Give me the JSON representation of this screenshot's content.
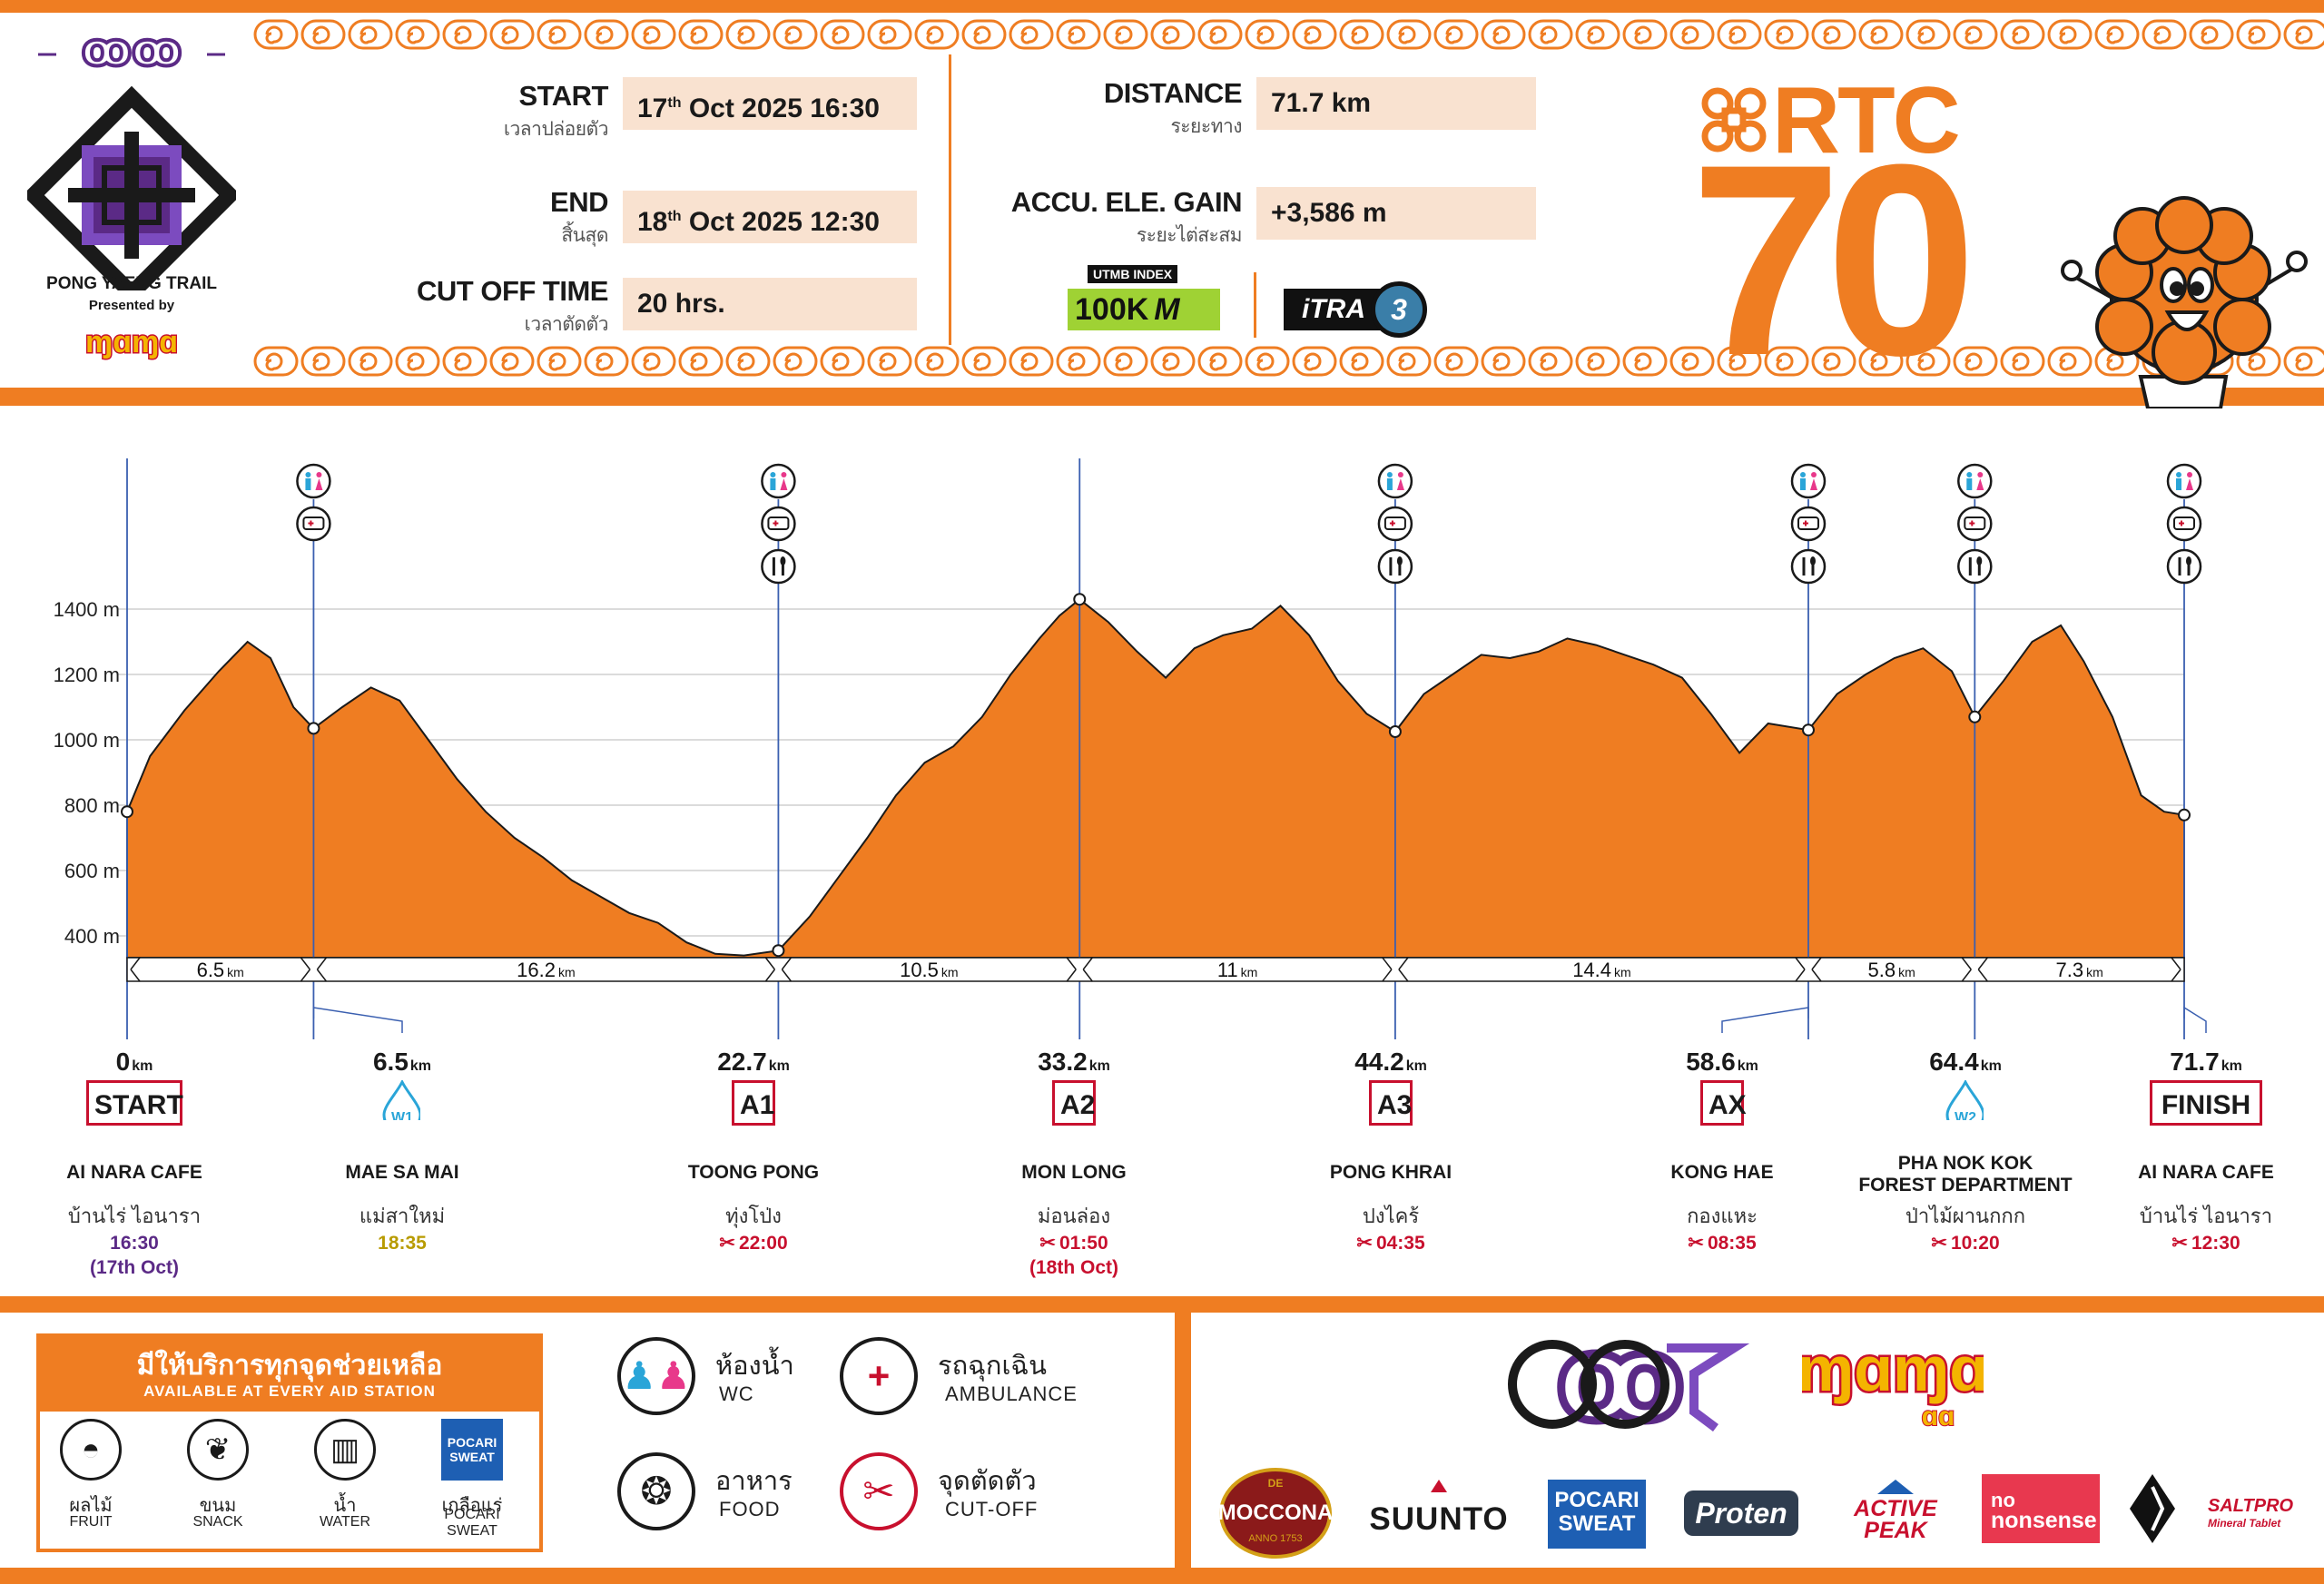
{
  "brand": {
    "trail_name": "PONG YAENG TRAIL",
    "presented_by": "Presented by",
    "race_code": "RTC",
    "race_distance": "70"
  },
  "fields": {
    "start_label": "START",
    "start_sub": "เวลาปล่อยตัว",
    "start_day": "17",
    "start_sup": "th",
    "start_rest": "Oct  2025   16:30",
    "end_label": "END",
    "end_sub": "สิ้นสุด",
    "end_day": "18",
    "end_sup": "th",
    "end_rest": "Oct  2025   12:30",
    "cutoff_label": "CUT OFF TIME",
    "cutoff_sub": "เวลาตัดตัว",
    "cutoff_value": "20 hrs.",
    "distance_label": "DISTANCE",
    "distance_sub": "ระยะทาง",
    "distance_value": "71.7 km",
    "gain_label": "ACCU. ELE. GAIN",
    "gain_sub": "ระยะไต่สะสม",
    "gain_value": "+3,586 m",
    "utmb_tag": "UTMB INDEX",
    "utmb_value": "100K",
    "utmb_mark": "M",
    "itra_text": "iTRA",
    "itra_value": "3"
  },
  "chart_data": {
    "type": "area",
    "xlabel": "",
    "ylabel": "",
    "y_unit": "m",
    "ylim": [
      300,
      1450
    ],
    "xlim": [
      0,
      71.7
    ],
    "y_ticks": [
      400,
      600,
      800,
      1000,
      1200,
      1400
    ],
    "y_tick_labels": [
      "400 m",
      "600 m",
      "800 m",
      "1000 m",
      "1200 m",
      "1400 m"
    ],
    "fill_color": "#ef7d22",
    "grid": true,
    "profile": [
      [
        0,
        780
      ],
      [
        0.8,
        950
      ],
      [
        2.0,
        1090
      ],
      [
        3.2,
        1210
      ],
      [
        4.2,
        1300
      ],
      [
        5.0,
        1250
      ],
      [
        5.8,
        1100
      ],
      [
        6.5,
        1035
      ],
      [
        7.5,
        1100
      ],
      [
        8.5,
        1160
      ],
      [
        9.5,
        1120
      ],
      [
        10.5,
        1000
      ],
      [
        11.5,
        880
      ],
      [
        12.5,
        780
      ],
      [
        13.5,
        700
      ],
      [
        14.5,
        640
      ],
      [
        15.5,
        570
      ],
      [
        16.5,
        520
      ],
      [
        17.5,
        470
      ],
      [
        18.5,
        440
      ],
      [
        19.5,
        380
      ],
      [
        20.5,
        345
      ],
      [
        21.5,
        340
      ],
      [
        22.7,
        355
      ],
      [
        23.8,
        460
      ],
      [
        24.8,
        580
      ],
      [
        25.8,
        700
      ],
      [
        26.8,
        830
      ],
      [
        27.8,
        930
      ],
      [
        28.8,
        980
      ],
      [
        29.8,
        1070
      ],
      [
        30.8,
        1200
      ],
      [
        31.8,
        1310
      ],
      [
        32.5,
        1380
      ],
      [
        33.2,
        1430
      ],
      [
        34.2,
        1360
      ],
      [
        35.2,
        1270
      ],
      [
        36.2,
        1190
      ],
      [
        37.2,
        1280
      ],
      [
        38.2,
        1320
      ],
      [
        39.2,
        1340
      ],
      [
        40.2,
        1410
      ],
      [
        41.2,
        1320
      ],
      [
        42.2,
        1180
      ],
      [
        43.2,
        1080
      ],
      [
        44.2,
        1025
      ],
      [
        45.2,
        1140
      ],
      [
        46.2,
        1200
      ],
      [
        47.2,
        1260
      ],
      [
        48.2,
        1250
      ],
      [
        49.2,
        1270
      ],
      [
        50.2,
        1310
      ],
      [
        51.2,
        1290
      ],
      [
        52.2,
        1260
      ],
      [
        53.2,
        1230
      ],
      [
        54.2,
        1190
      ],
      [
        55.2,
        1080
      ],
      [
        56.2,
        960
      ],
      [
        57.2,
        1050
      ],
      [
        58.6,
        1030
      ],
      [
        59.6,
        1140
      ],
      [
        60.6,
        1200
      ],
      [
        61.6,
        1250
      ],
      [
        62.6,
        1280
      ],
      [
        63.6,
        1210
      ],
      [
        64.4,
        1070
      ],
      [
        65.4,
        1180
      ],
      [
        66.4,
        1300
      ],
      [
        67.4,
        1350
      ],
      [
        68.2,
        1240
      ],
      [
        69.2,
        1070
      ],
      [
        70.2,
        830
      ],
      [
        71.0,
        780
      ],
      [
        71.7,
        770
      ]
    ],
    "stations": [
      {
        "km": 0,
        "km_label": "0",
        "code": "START",
        "type": "box",
        "name": "AI NARA CAFE",
        "name2": "",
        "thai": "บ้านไร่  ไอนารา",
        "time": "16:30",
        "time2": "(17th Oct)",
        "time_style": "start",
        "services": []
      },
      {
        "km": 6.5,
        "km_label": "6.5",
        "code": "W1",
        "type": "water",
        "name": "MAE SA MAI",
        "name2": "",
        "thai": "แม่สาใหม่",
        "time": "18:35",
        "time2": "",
        "time_style": "water",
        "services": [
          "wc",
          "ambulance"
        ]
      },
      {
        "km": 22.7,
        "km_label": "22.7",
        "code": "A1",
        "type": "box",
        "name": "TOONG PONG",
        "name2": "",
        "thai": "ทุ่งโป่ง",
        "time": "22:00",
        "time2": "",
        "time_style": "cutoff",
        "services": [
          "wc",
          "ambulance",
          "food"
        ]
      },
      {
        "km": 33.2,
        "km_label": "33.2",
        "code": "A2",
        "type": "box",
        "name": "MON LONG",
        "name2": "",
        "thai": "ม่อนล่อง",
        "time": "01:50",
        "time2": "(18th Oct)",
        "time_style": "cutoff",
        "services": []
      },
      {
        "km": 44.2,
        "km_label": "44.2",
        "code": "A3",
        "type": "box",
        "name": "PONG KHRAI",
        "name2": "",
        "thai": "ปงไคร้",
        "time": "04:35",
        "time2": "",
        "time_style": "cutoff",
        "services": [
          "wc",
          "ambulance",
          "food"
        ]
      },
      {
        "km": 58.6,
        "km_label": "58.6",
        "code": "AX",
        "type": "box",
        "name": "KONG HAE",
        "name2": "",
        "thai": "กองแหะ",
        "time": "08:35",
        "time2": "",
        "time_style": "cutoff",
        "services": [
          "wc",
          "ambulance",
          "food"
        ]
      },
      {
        "km": 64.4,
        "km_label": "64.4",
        "code": "W2",
        "type": "water",
        "name": "PHA NOK KOK",
        "name2": "FOREST DEPARTMENT",
        "thai": "ป่าไม้ผานกกก",
        "time": "10:20",
        "time2": "",
        "time_style": "cutoff",
        "services": [
          "wc",
          "ambulance",
          "food"
        ]
      },
      {
        "km": 71.7,
        "km_label": "71.7",
        "code": "FINISH",
        "type": "box",
        "name": "AI NARA CAFE",
        "name2": "",
        "thai": "บ้านไร่  ไอนารา",
        "time": "12:30",
        "time2": "",
        "time_style": "cutoff",
        "services": [
          "wc",
          "ambulance",
          "food"
        ]
      }
    ],
    "segments": [
      {
        "value": "6.5",
        "unit": "km"
      },
      {
        "value": "16.2",
        "unit": "km"
      },
      {
        "value": "10.5",
        "unit": "km"
      },
      {
        "value": "11",
        "unit": "km"
      },
      {
        "value": "14.4",
        "unit": "km"
      },
      {
        "value": "5.8",
        "unit": "km"
      },
      {
        "value": "7.3",
        "unit": "km"
      }
    ]
  },
  "aid": {
    "title_th": "มีให้บริการทุกจุดช่วยเหลือ",
    "title_en": "AVAILABLE AT EVERY AID STATION",
    "items": [
      {
        "th": "ผลไม้",
        "en": "FRUIT",
        "icon": "watermelon-icon"
      },
      {
        "th": "ขนม",
        "en": "SNACK",
        "icon": "candy-icon"
      },
      {
        "th": "น้ำ",
        "en": "WATER",
        "icon": "water-glass-icon"
      },
      {
        "th": "เกลือแร่",
        "en": "POCARI SWEAT",
        "en1": "POCARI",
        "en2": "SWEAT",
        "icon": "pocari-sweat-icon"
      }
    ]
  },
  "legend": [
    {
      "key": "wc",
      "th": "ห้องน้ำ",
      "en": "WC",
      "icon": "wc-icon"
    },
    {
      "key": "ambulance",
      "th": "รถฉุกเฉิน",
      "en": "AMBULANCE",
      "icon": "ambulance-icon"
    },
    {
      "key": "food",
      "th": "อาหาร",
      "en": "FOOD",
      "icon": "food-icon"
    },
    {
      "key": "cutoff",
      "th": "จุดตัดตัว",
      "en": "CUT-OFF",
      "icon": "scissors-icon"
    }
  ],
  "sponsors": {
    "moccona": "MOCCONA",
    "moccona_de": "DE",
    "moccona_year": "ANNO 1753",
    "suunto": "SUUNTO",
    "pocari_1": "POCARI",
    "pocari_2": "SWEAT",
    "proten": "Proten",
    "activepeak_1": "ACTIVE",
    "activepeak_2": "PEAK",
    "nonsense_1": "no",
    "nonsense_2": "nonsense",
    "saltpro": "SALTPRO",
    "saltpro_sub": "Mineral Tablet"
  },
  "colors": {
    "orange": "#ef7d22",
    "purple": "#5b2a86",
    "cutoff_red": "#c8102e",
    "water_blue": "#2aa5d8",
    "peach": "#f9e2d0"
  }
}
